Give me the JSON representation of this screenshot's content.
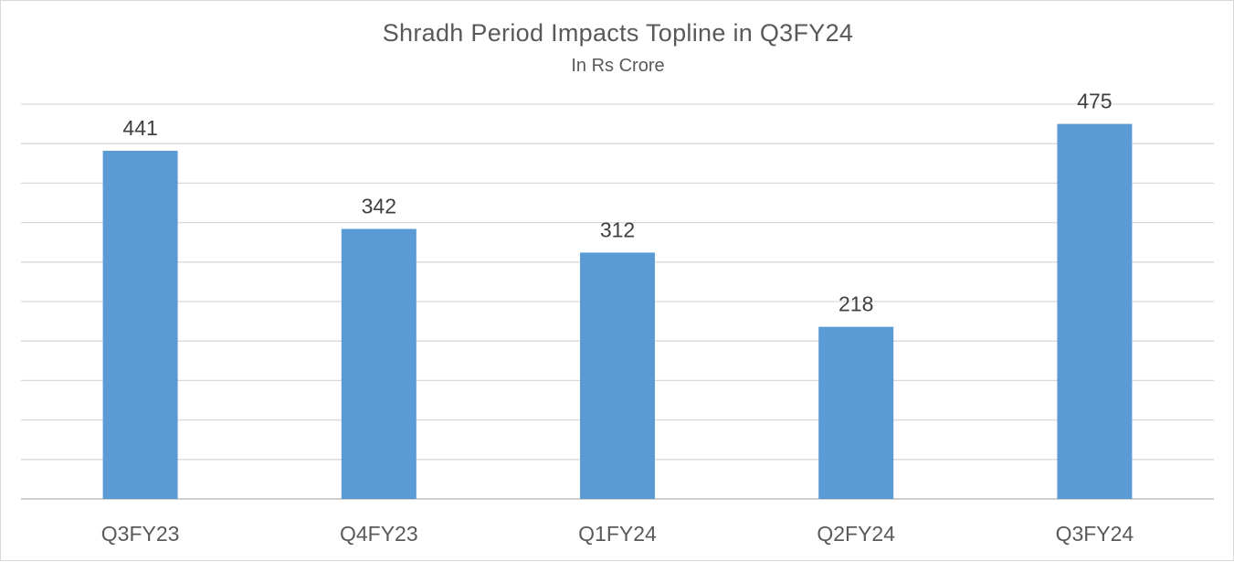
{
  "chart_data": {
    "type": "bar",
    "title": "Shradh Period Impacts Topline in Q3FY24",
    "subtitle": "In Rs Crore",
    "categories": [
      "Q3FY23",
      "Q4FY23",
      "Q1FY24",
      "Q2FY24",
      "Q3FY24"
    ],
    "values": [
      441,
      342,
      312,
      218,
      475
    ],
    "data_labels": [
      "441",
      "342",
      "312",
      "218",
      "475"
    ],
    "xlabel": "",
    "ylabel": "",
    "ylim": [
      0,
      500
    ],
    "grid": true,
    "legend": "none",
    "bar_color": "#5b9bd5"
  }
}
